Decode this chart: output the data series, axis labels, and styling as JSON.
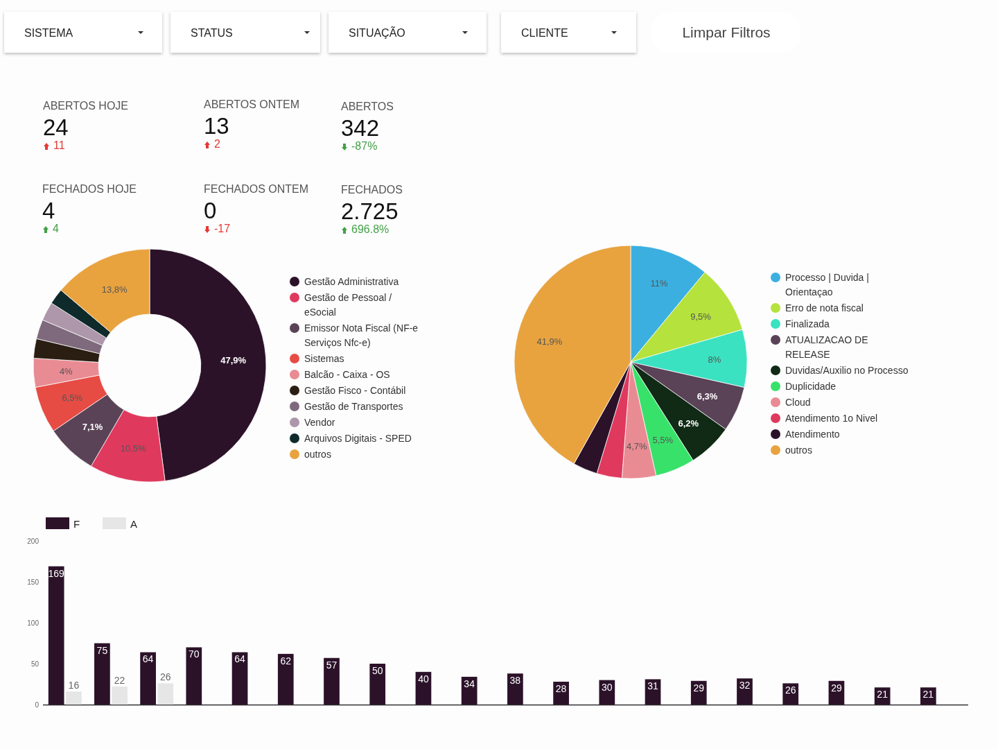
{
  "chart_data": [
    {
      "type": "other",
      "annotations": [
        "SISTEMA",
        "STATUS",
        "SITUAÇÃO",
        "CLIENTE",
        "Limpar Filtros",
        "ABERTOS HOJE",
        "24",
        "11",
        "ABERTOS ONTEM",
        "13",
        "2",
        "ABERTOS",
        "342",
        "-87%",
        "FECHADOS HOJE",
        "4",
        "4",
        "FECHADOS ONTEM",
        "0",
        "-17",
        "FECHADOS",
        "2.725",
        "696.8%"
      ]
    },
    {
      "type": "donut",
      "legend": "right",
      "categories": [
        "Gestão Administrativa",
        "Gestão de Pessoal / eSocial",
        "Emissor Nota Fiscal (NF-e Serviços Nfc-e)",
        "Sistemas",
        "Balcão - Caixa - OS",
        "Gestão Fisco - Contábil",
        "Gestão de Transportes",
        "Vendor",
        "Arquivos Digitais - SPED",
        "outros"
      ],
      "values": [
        47.9,
        10.5,
        7.1,
        6.5,
        4,
        2.7,
        2.7,
        2.6,
        2.2,
        13.8
      ],
      "colors": [
        "#2b1229",
        "#e0395e",
        "#5a4257",
        "#e74c44",
        "#e98b93",
        "#2a1e12",
        "#7e6a7c",
        "#ae97ab",
        "#0f2a2a",
        "#e8a33f"
      ],
      "value_labels": [
        "47,9%",
        "10,5%",
        "7,1%",
        "6,5%",
        "4%",
        null,
        null,
        null,
        null,
        "13,8%"
      ]
    },
    {
      "type": "pie",
      "legend": "right",
      "categories": [
        "Processo | Duvida | Orientaçao",
        "Erro de nota fiscal",
        "Finalizada",
        "ATUALIZACAO DE RELEASE",
        "Duvidas/Auxilio no Processo",
        "Duplicidade",
        "Cloud",
        "Atendimento 1o Nivel",
        "Atendimento",
        "outros"
      ],
      "values": [
        11,
        9.5,
        8,
        6.3,
        6.2,
        5.5,
        4.7,
        3.5,
        3.4,
        41.9
      ],
      "colors": [
        "#3bb0e0",
        "#b5e23c",
        "#3ae2c1",
        "#5a4257",
        "#102a15",
        "#38e26a",
        "#e98b93",
        "#e0395e",
        "#2b1229",
        "#e8a33f"
      ],
      "value_labels": [
        "11%",
        "9,5%",
        "8%",
        "6,3%",
        "6,2%",
        "5,5%",
        "4,7%",
        null,
        null,
        "41,9%"
      ]
    },
    {
      "type": "bar",
      "legend": "top left",
      "grid": false,
      "categories": [
        null,
        null,
        null,
        null,
        null,
        null,
        null,
        null,
        null,
        null,
        null,
        null,
        null,
        null,
        null,
        null,
        null,
        null,
        null,
        null
      ],
      "ylim": [
        0,
        200
      ],
      "yticks": [
        0,
        50,
        100,
        150,
        200
      ],
      "series": [
        {
          "name": "F",
          "color": "#2b1229",
          "values": [
            169,
            75,
            64,
            70,
            64,
            62,
            57,
            50,
            40,
            34,
            38,
            28,
            30,
            31,
            29,
            32,
            26,
            29,
            21,
            21
          ],
          "value_labels": [
            "169",
            "75",
            "64",
            "70",
            "64",
            "62",
            "57",
            "50",
            "40",
            "34",
            "38",
            "28",
            "30",
            "31",
            "29",
            "32",
            "26",
            "29",
            "21",
            "21"
          ]
        },
        {
          "name": "A",
          "color": "#e6e6e6",
          "values": [
            16,
            22,
            26,
            null,
            null,
            null,
            null,
            null,
            null,
            null,
            null,
            null,
            null,
            null,
            null,
            null,
            null,
            null,
            null,
            null
          ],
          "value_labels": [
            "16",
            "22",
            "26",
            null,
            null,
            null,
            null,
            null,
            null,
            null,
            null,
            null,
            null,
            null,
            null,
            null,
            null,
            null,
            null,
            null
          ]
        }
      ]
    }
  ]
}
